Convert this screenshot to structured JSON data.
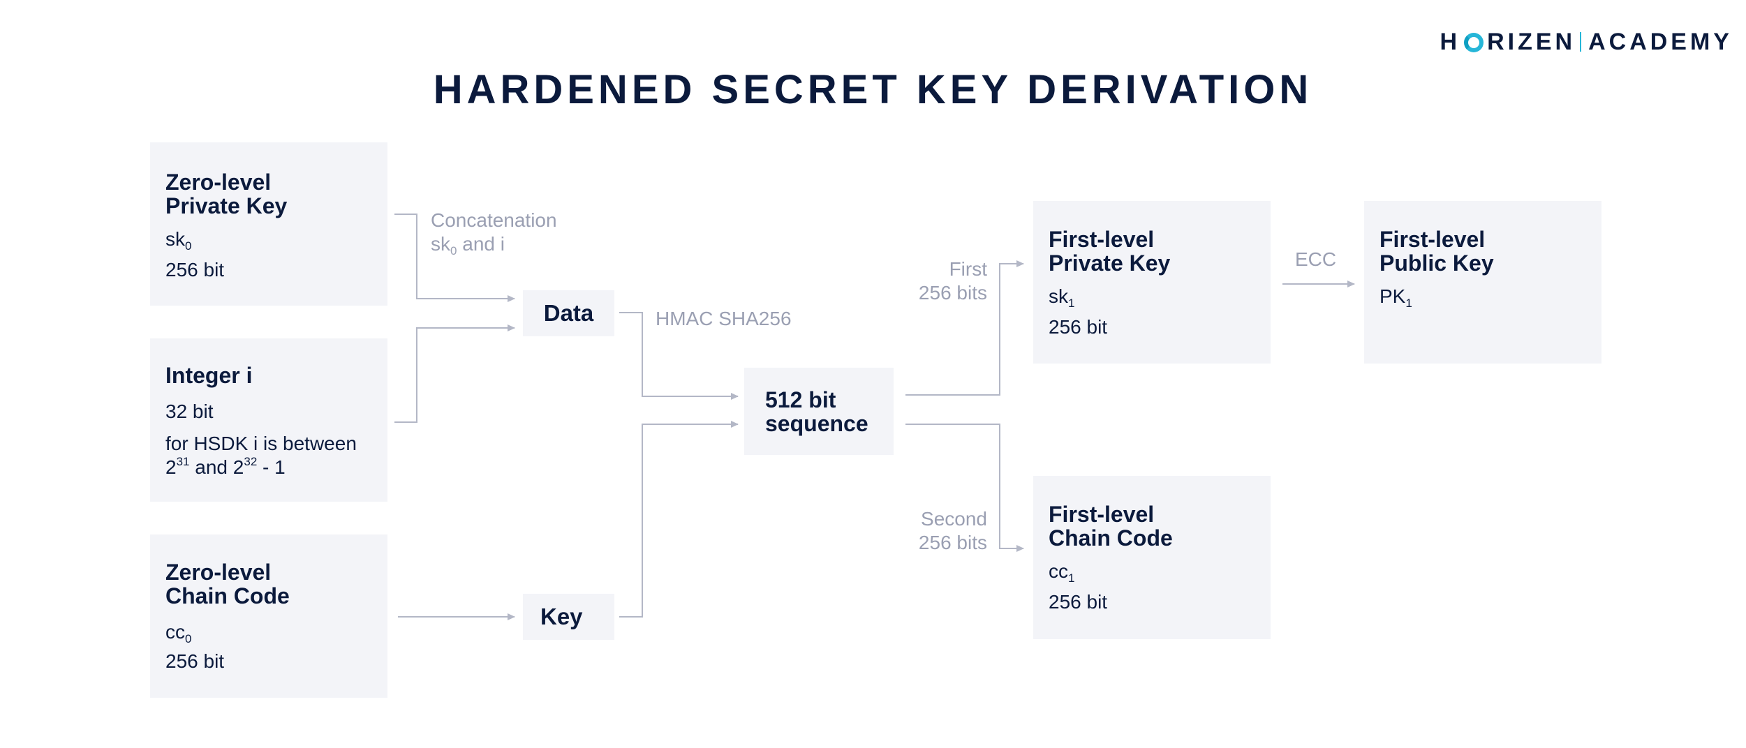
{
  "logo": {
    "left_text": "H",
    "left_text_after": "RIZEN",
    "right_text": "ACADEMY"
  },
  "title": "HARDENED SECRET KEY DERIVATION",
  "nodes": {
    "zero_private_key": {
      "title_line1": "Zero-level",
      "title_line2": "Private Key",
      "symbol": "sk",
      "symbol_sub": "0",
      "size": "256 bit"
    },
    "integer_i": {
      "title": "Integer i",
      "size": "32 bit",
      "note_line1": "for HSDK i is between",
      "note_base1": "2",
      "note_exp1": "31",
      "note_mid": " and ",
      "note_base2": "2",
      "note_exp2": "32",
      "note_tail": " - 1"
    },
    "zero_chain_code": {
      "title_line1": "Zero-level",
      "title_line2": "Chain Code",
      "symbol": "cc",
      "symbol_sub": "0",
      "size": "256 bit"
    },
    "data": {
      "label": "Data"
    },
    "key": {
      "label": "Key"
    },
    "sequence": {
      "label_line1": "512 bit",
      "label_line2": "sequence"
    },
    "first_private_key": {
      "title_line1": "First-level",
      "title_line2": "Private Key",
      "symbol": "sk",
      "symbol_sub": "1",
      "size": "256 bit"
    },
    "first_public_key": {
      "title_line1": "First-level",
      "title_line2": "Public Key",
      "symbol": "PK",
      "symbol_sub": "1"
    },
    "first_chain_code": {
      "title_line1": "First-level",
      "title_line2": "Chain Code",
      "symbol": "cc",
      "symbol_sub": "1",
      "size": "256 bit"
    }
  },
  "edge_labels": {
    "concatenation_line1": "Concatenation",
    "concatenation_sym": "sk",
    "concatenation_sub": "0",
    "concatenation_tail": " and i",
    "hmac": "HMAC SHA256",
    "first_line1": "First",
    "first_line2": "256 bits",
    "second_line1": "Second",
    "second_line2": "256 bits",
    "ecc": "ECC"
  },
  "colors": {
    "box_fill": "#f3f4f8",
    "text_dark": "#0b1a3c",
    "text_muted": "#9a9fb2",
    "connector": "#b3b7c6",
    "logo_accent": "#26b6d8"
  }
}
